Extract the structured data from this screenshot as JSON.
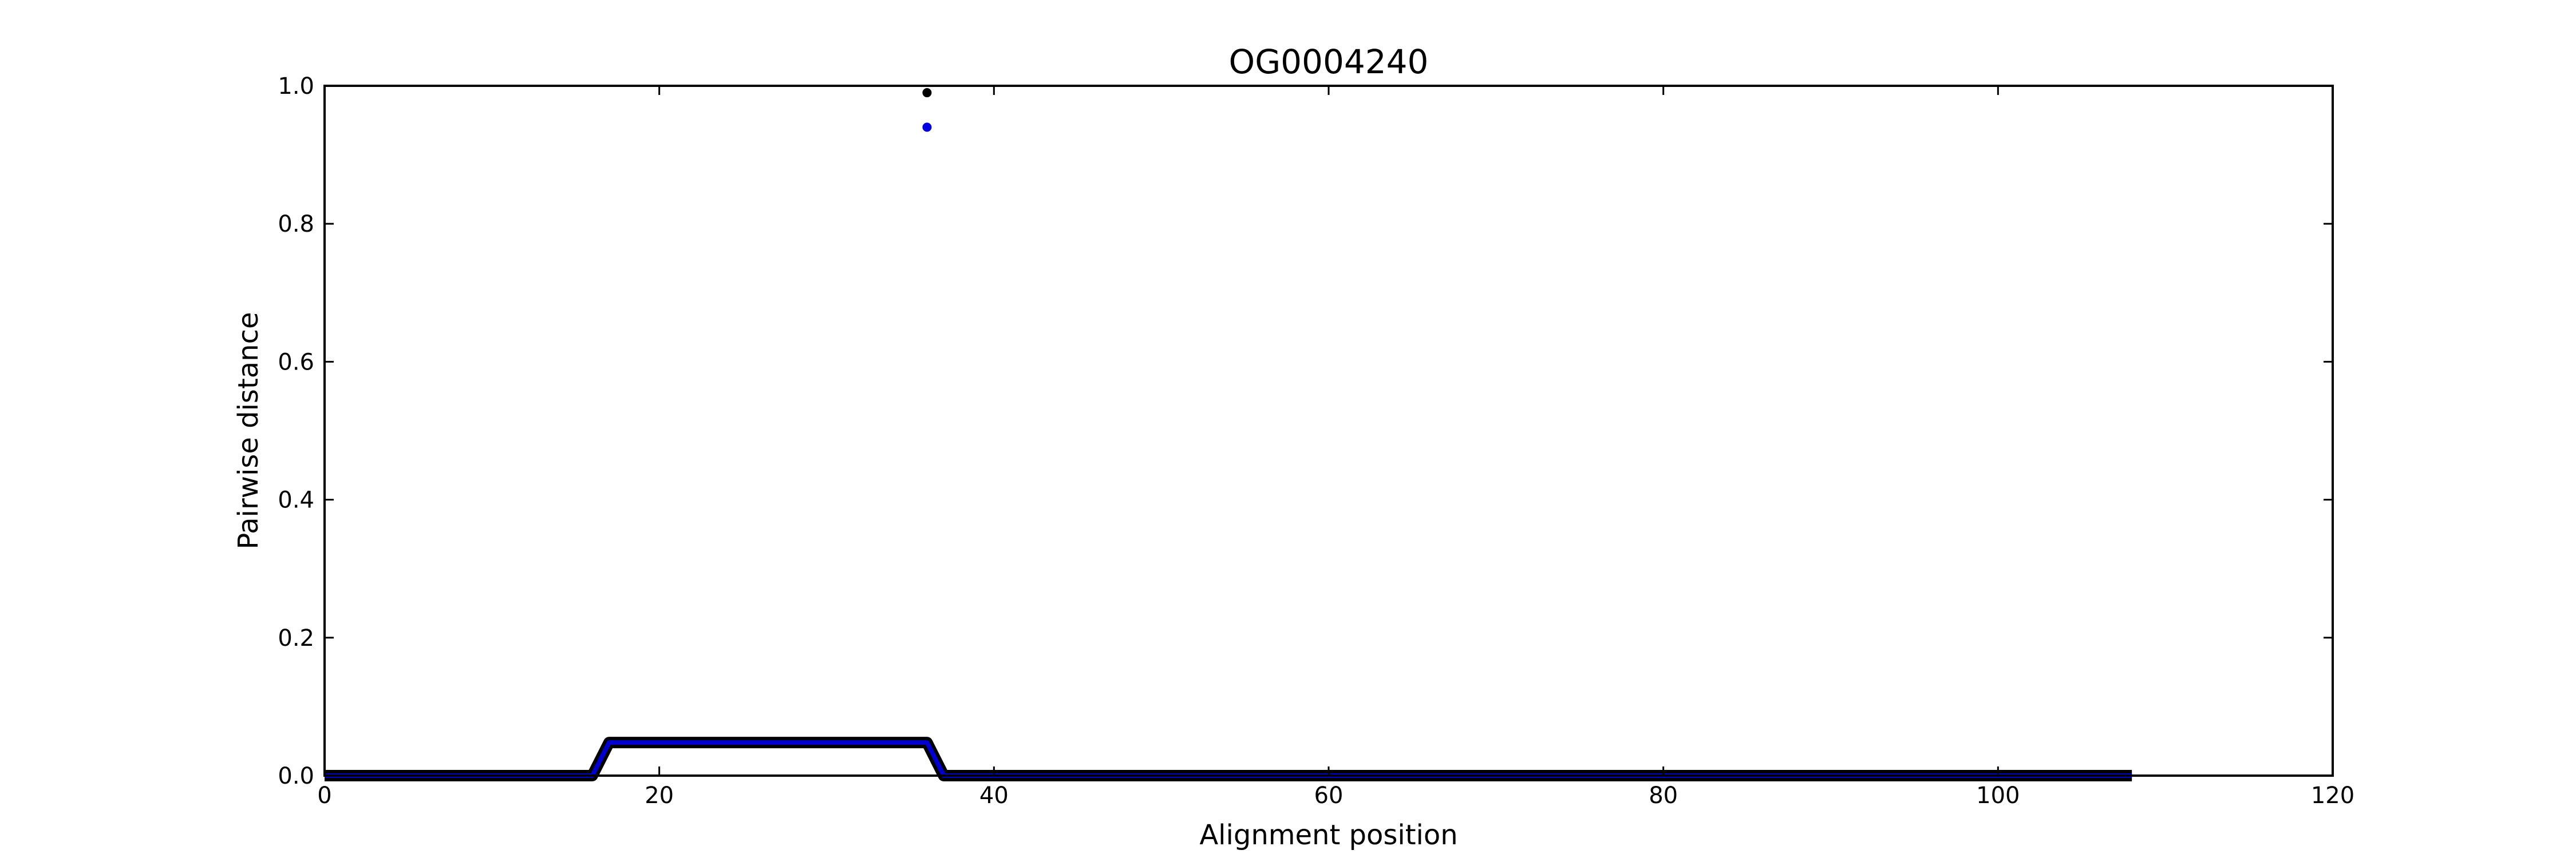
{
  "chart_data": {
    "type": "line",
    "title": "OG0004240",
    "xlabel": "Alignment position",
    "ylabel": "Pairwise distance",
    "xlim": [
      0,
      120
    ],
    "ylim": [
      0,
      1.0
    ],
    "xticks": [
      "0",
      "20",
      "40",
      "60",
      "80",
      "100",
      "120"
    ],
    "yticks": [
      "0.0",
      "0.2",
      "0.4",
      "0.6",
      "0.8",
      "1.0"
    ],
    "grid": false,
    "series": [
      {
        "kind": "line",
        "color": "#000000",
        "x": [
          0,
          16,
          17,
          36,
          37,
          108
        ],
        "y": [
          0.0,
          0.0,
          0.048,
          0.048,
          0.0,
          0.0
        ]
      },
      {
        "kind": "line",
        "color": "#0000cc",
        "x": [
          0,
          16,
          17,
          36,
          37,
          108
        ],
        "y": [
          0.0,
          0.0,
          0.048,
          0.048,
          0.0,
          0.0
        ]
      },
      {
        "kind": "scatter",
        "color": "#000000",
        "x": [
          36
        ],
        "y": [
          0.99
        ]
      },
      {
        "kind": "scatter",
        "color": "#0000dd",
        "x": [
          36
        ],
        "y": [
          0.94
        ]
      }
    ]
  }
}
